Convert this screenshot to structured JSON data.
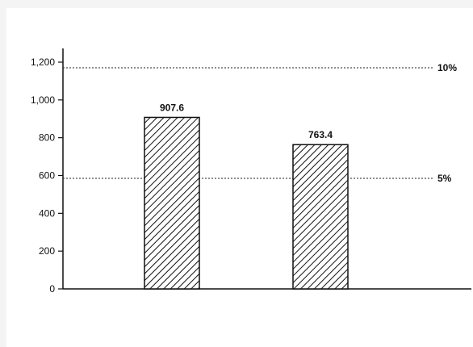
{
  "chart_data": {
    "type": "bar",
    "title": "",
    "xlabel": "",
    "ylabel": "",
    "categories": [
      "",
      ""
    ],
    "values": [
      907.6,
      763.4
    ],
    "value_labels": [
      "907.6",
      "763.4"
    ],
    "ylim": [
      0,
      1250
    ],
    "yticks": [
      0,
      200,
      400,
      600,
      800,
      1000,
      1200
    ],
    "ytick_labels": [
      "0",
      "200",
      "400",
      "600",
      "800",
      "1,000",
      "1,200"
    ],
    "bar_fill": "hatched",
    "grid": false,
    "legend": "none",
    "reference_lines": [
      {
        "label": "10%",
        "value": 1170
      },
      {
        "label": "5%",
        "value": 585
      }
    ]
  }
}
